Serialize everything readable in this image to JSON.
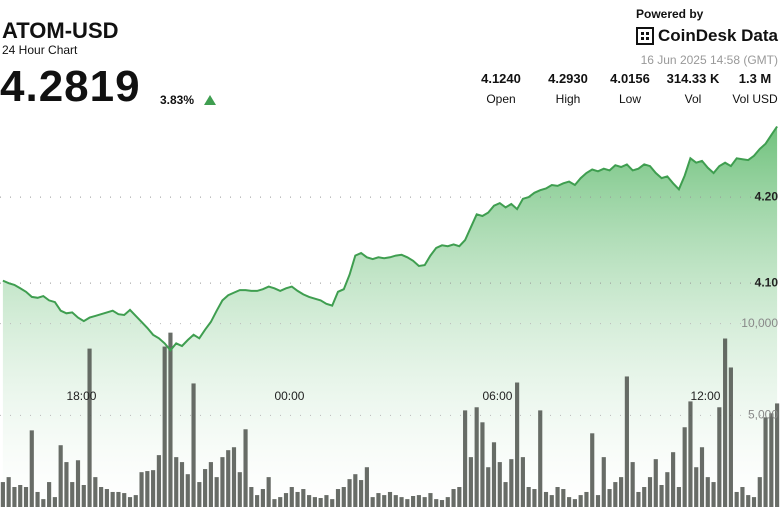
{
  "header": {
    "symbol": "ATOM-USD",
    "subtitle": "24 Hour Chart",
    "price": "4.2819",
    "change": "3.83%",
    "powered_by": "Powered by",
    "brand": "CoinDesk Data",
    "timestamp": "16 Jun 2025 14:58 (GMT)"
  },
  "stats": [
    {
      "value": "4.1240",
      "label": "Open"
    },
    {
      "value": "4.2930",
      "label": "High"
    },
    {
      "value": "4.0156",
      "label": "Low"
    },
    {
      "value": "314.33 K",
      "label": "Vol"
    },
    {
      "value": "1.3 M",
      "label": "Vol USD"
    }
  ],
  "chart_data": [
    {
      "type": "area",
      "color": "#3f9e50",
      "grid": true,
      "xlim": [
        -0.5,
        134.5
      ],
      "xticks": [
        {
          "value": 13.6,
          "label": "18:00"
        },
        {
          "value": 49.6,
          "label": "00:00"
        },
        {
          "value": 85.6,
          "label": "06:00"
        },
        {
          "value": 121.6,
          "label": "12:00"
        }
      ],
      "ylim": [
        3.84,
        4.3
      ],
      "yticks": [
        {
          "value": 4.1,
          "label": "4.10"
        },
        {
          "value": 4.2,
          "label": "4.20"
        }
      ],
      "values": [
        4.103,
        4.1,
        4.098,
        4.094,
        4.09,
        4.084,
        4.083,
        4.085,
        4.08,
        4.078,
        4.068,
        4.065,
        4.066,
        4.06,
        4.056,
        4.06,
        4.062,
        4.064,
        4.066,
        4.068,
        4.064,
        4.063,
        4.069,
        4.062,
        4.055,
        4.048,
        4.04,
        4.036,
        4.03,
        4.022,
        4.03,
        4.027,
        4.034,
        4.04,
        4.036,
        4.046,
        4.055,
        4.068,
        4.08,
        4.086,
        4.089,
        4.092,
        4.092,
        4.091,
        4.091,
        4.093,
        4.096,
        4.094,
        4.091,
        4.094,
        4.096,
        4.091,
        4.087,
        4.084,
        4.082,
        4.08,
        4.076,
        4.074,
        4.09,
        4.093,
        4.11,
        4.132,
        4.135,
        4.13,
        4.128,
        4.13,
        4.129,
        4.13,
        4.132,
        4.133,
        4.13,
        4.126,
        4.12,
        4.121,
        4.132,
        4.141,
        4.144,
        4.143,
        4.145,
        4.143,
        4.15,
        4.165,
        4.18,
        4.178,
        4.182,
        4.19,
        4.193,
        4.188,
        4.192,
        4.186,
        4.198,
        4.2,
        4.205,
        4.208,
        4.21,
        4.214,
        4.213,
        4.216,
        4.218,
        4.214,
        4.222,
        4.228,
        4.232,
        4.23,
        4.233,
        4.231,
        4.237,
        4.235,
        4.238,
        4.231,
        4.233,
        4.238,
        4.236,
        4.228,
        4.222,
        4.224,
        4.216,
        4.209,
        4.225,
        4.245,
        4.24,
        4.242,
        4.234,
        4.228,
        4.236,
        4.24,
        4.236,
        4.245,
        4.244,
        4.243,
        4.248,
        4.256,
        4.262,
        4.272,
        4.282
      ]
    },
    {
      "type": "bar",
      "color": "#4e524c",
      "grid": true,
      "xlim": [
        -0.5,
        134.5
      ],
      "ylim": [
        0,
        21600
      ],
      "yticks": [
        {
          "value": 5000,
          "label": "5,000"
        },
        {
          "value": 10000,
          "label": "10,000"
        }
      ],
      "values": [
        1360,
        1630,
        1090,
        1200,
        1090,
        4180,
        820,
        430,
        1360,
        540,
        3370,
        2450,
        1360,
        2550,
        1200,
        8640,
        1630,
        1090,
        980,
        820,
        820,
        760,
        540,
        650,
        1900,
        1960,
        2010,
        2830,
        8750,
        9510,
        2720,
        2450,
        1790,
        6740,
        1360,
        2070,
        2450,
        1630,
        2720,
        3100,
        3260,
        1900,
        4240,
        1090,
        650,
        980,
        1630,
        430,
        540,
        760,
        1090,
        820,
        980,
        650,
        540,
        490,
        650,
        430,
        980,
        1090,
        1520,
        1790,
        1470,
        2170,
        540,
        760,
        650,
        820,
        650,
        540,
        430,
        600,
        650,
        540,
        760,
        430,
        380,
        540,
        980,
        1090,
        5270,
        2720,
        5440,
        4620,
        2170,
        3530,
        2450,
        1360,
        2610,
        6790,
        2720,
        1090,
        980,
        5270,
        820,
        650,
        1090,
        980,
        540,
        430,
        650,
        820,
        4020,
        650,
        2720,
        980,
        1360,
        1630,
        7120,
        2450,
        820,
        1090,
        1630,
        2610,
        1200,
        1900,
        2990,
        1090,
        4350,
        5760,
        2170,
        3260,
        1630,
        1360,
        5440,
        9190,
        7610,
        820,
        1090,
        650,
        540,
        1630,
        4890,
        5110,
        5650
      ]
    }
  ]
}
